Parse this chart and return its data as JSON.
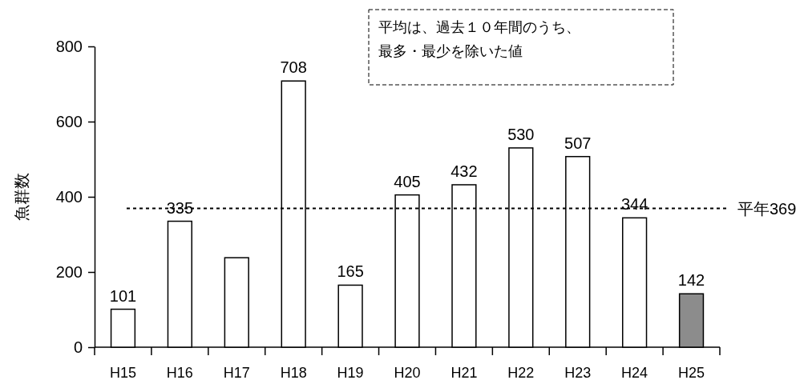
{
  "chart_data": {
    "type": "bar",
    "ylabel": "魚群数",
    "categories": [
      "H15",
      "H16",
      "H17",
      "H18",
      "H19",
      "H20",
      "H21",
      "H22",
      "H23",
      "H24",
      "H25"
    ],
    "values": [
      101,
      335,
      238,
      708,
      165,
      405,
      432,
      530,
      507,
      344,
      142
    ],
    "value_labels": [
      "101",
      "335",
      null,
      "708",
      "165",
      "405",
      "432",
      "530",
      "507",
      "344",
      "142"
    ],
    "colors": [
      "#ffffff",
      "#ffffff",
      "#ffffff",
      "#ffffff",
      "#ffffff",
      "#ffffff",
      "#ffffff",
      "#ffffff",
      "#ffffff",
      "#ffffff",
      "#8c8c8c"
    ],
    "ylim": [
      0,
      800
    ],
    "yticks": [
      0,
      200,
      400,
      600,
      800
    ],
    "grid": false,
    "ref_lines": [
      {
        "axis": "y",
        "value": 369,
        "label": "平年369",
        "line_style": "dotted",
        "color": "#000000"
      }
    ],
    "annotations": [
      "平均は、過去１０年間のうち、最多・最少を除いた値"
    ]
  }
}
